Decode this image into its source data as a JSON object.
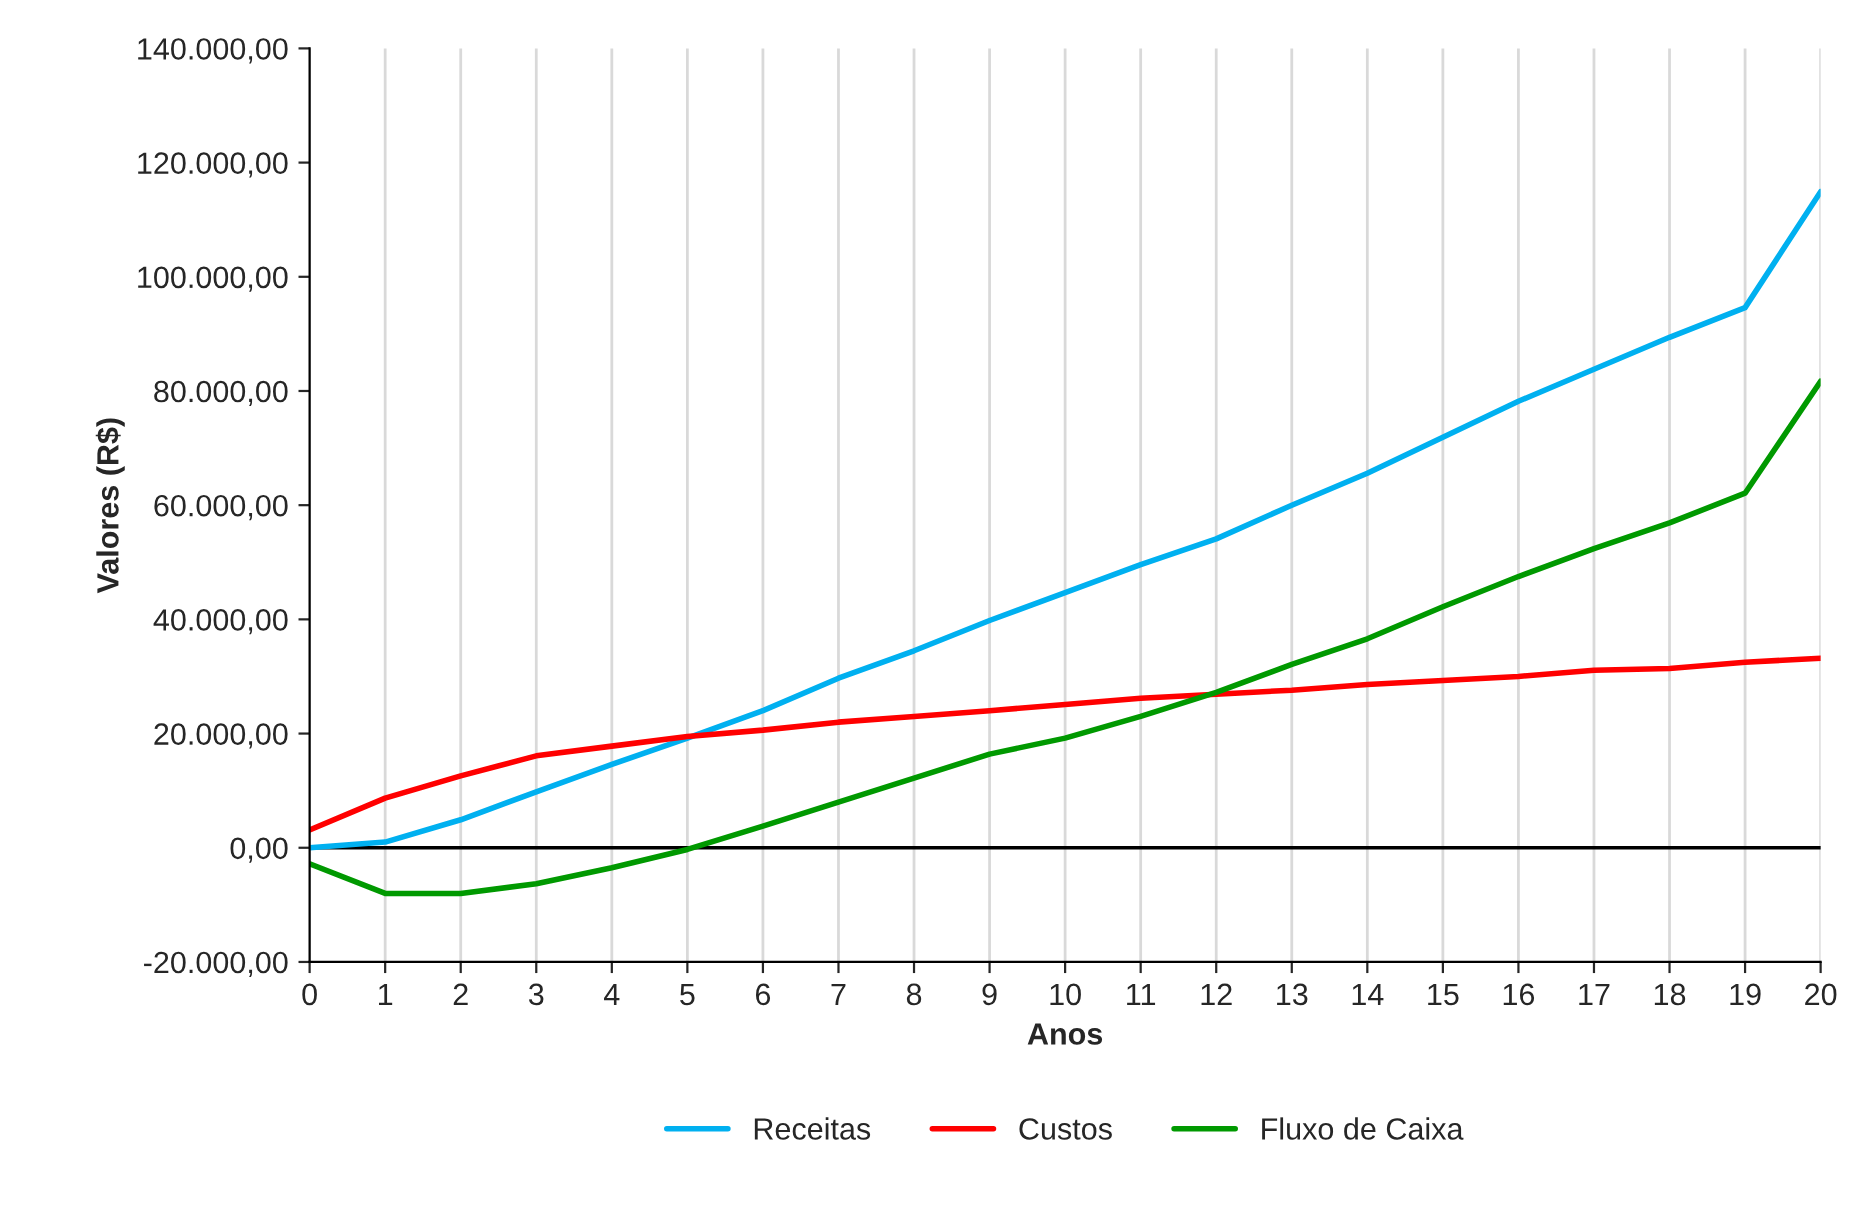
{
  "chart_data": {
    "type": "line",
    "xlabel": "Anos",
    "ylabel": "Valores (R$)",
    "x": [
      0,
      1,
      2,
      3,
      4,
      5,
      6,
      7,
      8,
      9,
      10,
      11,
      12,
      13,
      14,
      15,
      16,
      17,
      18,
      19,
      20
    ],
    "series": [
      {
        "name": "Receitas",
        "color": "#00b0f0",
        "values": [
          0,
          1000,
          4900,
          9800,
          14600,
          19200,
          24000,
          29700,
          34500,
          39800,
          44700,
          49600,
          54100,
          60000,
          65600,
          71900,
          78200,
          83800,
          89400,
          94600,
          114900
        ]
      },
      {
        "name": "Custos",
        "color": "#ff0000",
        "values": [
          3100,
          8700,
          12600,
          16100,
          17800,
          19500,
          20600,
          22000,
          23000,
          24000,
          25100,
          26200,
          26900,
          27600,
          28600,
          29300,
          30000,
          31100,
          31400,
          32500,
          33200
        ]
      },
      {
        "name": "Fluxo de Caixa",
        "color": "#009900",
        "values": [
          -2800,
          -8000,
          -8000,
          -6300,
          -3500,
          -300,
          3800,
          8000,
          12200,
          16400,
          19200,
          23000,
          27200,
          32100,
          36600,
          42200,
          47500,
          52400,
          56900,
          62100,
          81700
        ]
      }
    ],
    "xlim": [
      0,
      20
    ],
    "xticks": [
      0,
      1,
      2,
      3,
      4,
      5,
      6,
      7,
      8,
      9,
      10,
      11,
      12,
      13,
      14,
      15,
      16,
      17,
      18,
      19,
      20
    ],
    "ylim": [
      -20000,
      140000
    ],
    "yticks": [
      {
        "value": -20000,
        "label": "-20.000,00"
      },
      {
        "value": 0,
        "label": "0,00"
      },
      {
        "value": 20000,
        "label": "20.000,00"
      },
      {
        "value": 40000,
        "label": "40.000,00"
      },
      {
        "value": 60000,
        "label": "60.000,00"
      },
      {
        "value": 80000,
        "label": "80.000,00"
      },
      {
        "value": 100000,
        "label": "100.000,00"
      },
      {
        "value": 120000,
        "label": "120.000,00"
      },
      {
        "value": 140000,
        "label": "140.000,00"
      }
    ],
    "ref_lines": [
      {
        "axis": "y",
        "value": 0,
        "color": "#000000"
      }
    ],
    "grid": "x",
    "legend": "bottom",
    "marker": "none",
    "line_style": "solid"
  }
}
